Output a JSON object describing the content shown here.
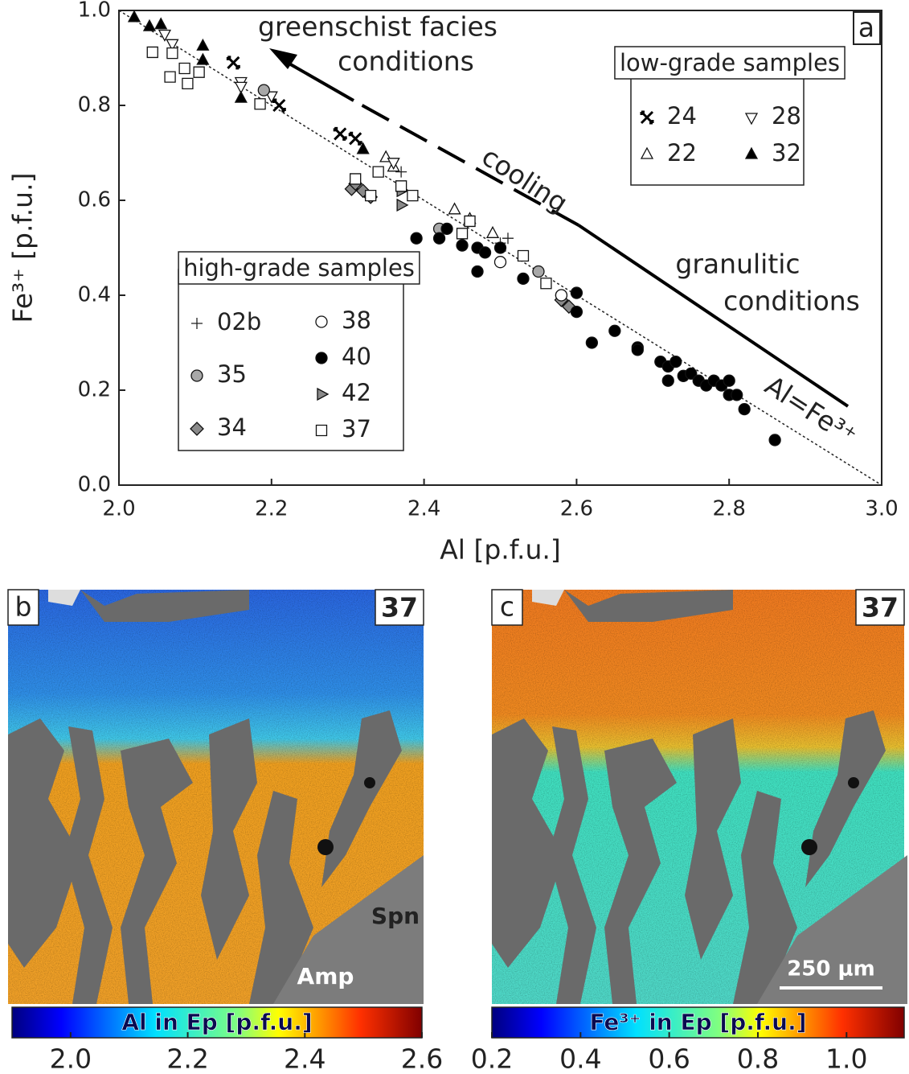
{
  "chart_data": [
    {
      "type": "scatter",
      "panel": "a",
      "xlabel": "Al [p.f.u.]",
      "ylabel": "Fe³⁺ [p.f.u.]",
      "xlim": [
        2.0,
        3.0
      ],
      "ylim": [
        0.0,
        1.0
      ],
      "xticks": [
        {
          "value": 2.0,
          "label": "2.0"
        },
        2.2,
        2.4,
        2.6,
        2.8,
        {
          "value": 3.0,
          "label": "3.0"
        }
      ],
      "yticks": [
        {
          "value": 0.0,
          "label": "0.0"
        },
        0.2,
        0.4,
        0.6,
        0.8,
        {
          "value": 1.0,
          "label": "1.0"
        }
      ],
      "annotations": {
        "greenschist": "greenschist facies",
        "greenschist2": "conditions",
        "cooling": "cooling",
        "granulitic": "granulitic",
        "granulitic2": "conditions",
        "line": "Al=Fe³⁺"
      },
      "legends": [
        {
          "title": "low-grade samples",
          "series": [
            {
              "name": "24",
              "marker": "x-star",
              "color": "#000",
              "x": [
                2.15,
                2.21,
                2.29,
                2.31
              ],
              "y": [
                0.89,
                0.8,
                0.74,
                0.73
              ]
            },
            {
              "name": "22",
              "marker": "triangle-up",
              "color": "#fff",
              "x": [
                2.35,
                2.36,
                2.44,
                2.46,
                2.49
              ],
              "y": [
                0.69,
                0.67,
                0.58,
                0.56,
                0.53
              ]
            },
            {
              "name": "28",
              "marker": "triangle-down",
              "color": "#fff",
              "x": [
                2.06,
                2.07,
                2.16,
                2.16,
                2.2,
                2.36
              ],
              "y": [
                0.95,
                0.93,
                0.85,
                0.84,
                0.82,
                0.68
              ]
            },
            {
              "name": "32",
              "marker": "triangle-up",
              "color": "#000",
              "x": [
                2.02,
                2.04,
                2.055,
                2.11,
                2.11,
                2.16,
                2.32
              ],
              "y": [
                0.985,
                0.966,
                0.97,
                0.925,
                0.895,
                0.815,
                0.707
              ]
            }
          ]
        },
        {
          "title": "high-grade samples",
          "series": [
            {
              "name": "02b",
              "marker": "plus",
              "color": "#222",
              "x": [
                2.37,
                2.51,
                2.5
              ],
              "y": [
                0.66,
                0.52,
                0.51
              ]
            },
            {
              "name": "35",
              "marker": "circle",
              "color": "#a8a8a8",
              "x": [
                2.19,
                2.42,
                2.55,
                2.58
              ],
              "y": [
                0.832,
                0.54,
                0.45,
                0.4
              ]
            },
            {
              "name": "34",
              "marker": "diamond",
              "color": "#8a8a8a",
              "x": [
                2.305,
                2.31,
                2.32,
                2.33,
                2.59,
                2.58
              ],
              "y": [
                0.624,
                0.635,
                0.62,
                0.607,
                0.376,
                0.39
              ]
            },
            {
              "name": "38",
              "marker": "circle",
              "color": "#fff",
              "x": [
                2.5,
                2.58
              ],
              "y": [
                0.47,
                0.4
              ]
            },
            {
              "name": "40",
              "marker": "circle",
              "color": "#000",
              "x": [
                2.39,
                2.42,
                2.43,
                2.45,
                2.47,
                2.48,
                2.47,
                2.5,
                2.53,
                2.6,
                2.6,
                2.62,
                2.65,
                2.68,
                2.68,
                2.71,
                2.72,
                2.72,
                2.73,
                2.74,
                2.75,
                2.76,
                2.77,
                2.78,
                2.79,
                2.8,
                2.8,
                2.81,
                2.82,
                2.86
              ],
              "y": [
                0.52,
                0.52,
                0.54,
                0.505,
                0.5,
                0.49,
                0.45,
                0.5,
                0.435,
                0.405,
                0.365,
                0.3,
                0.325,
                0.29,
                0.285,
                0.26,
                0.25,
                0.22,
                0.26,
                0.23,
                0.235,
                0.22,
                0.21,
                0.22,
                0.21,
                0.22,
                0.19,
                0.19,
                0.16,
                0.095
              ]
            },
            {
              "name": "42",
              "marker": "triangle-right",
              "color": "#8a8a8a",
              "x": [
                2.37,
                2.37
              ],
              "y": [
                0.59,
                0.62
              ]
            },
            {
              "name": "37",
              "marker": "square",
              "color": "#fff",
              "x": [
                2.044,
                2.07,
                2.086,
                2.067,
                2.09,
                2.105,
                2.185,
                2.31,
                2.33,
                2.34,
                2.37,
                2.385,
                2.46,
                2.45,
                2.53,
                2.56
              ],
              "y": [
                0.912,
                0.91,
                0.878,
                0.86,
                0.846,
                0.87,
                0.803,
                0.645,
                0.61,
                0.66,
                0.63,
                0.61,
                0.556,
                0.53,
                0.483,
                0.425
              ]
            }
          ]
        }
      ]
    },
    {
      "type": "map",
      "panel": "b",
      "sample": "37",
      "labels": [
        "Spn",
        "Amp"
      ],
      "colorbar": {
        "label": "Al in Ep [p.f.u.]",
        "lim": [
          1.9,
          2.6
        ],
        "ticks": [
          {
            "value": 2.0,
            "label": "2.0"
          },
          2.2,
          2.4,
          2.6
        ]
      }
    },
    {
      "type": "map",
      "panel": "c",
      "sample": "37",
      "labels": [
        "250 μm"
      ],
      "colorbar": {
        "label": "Fe³⁺ in Ep [p.f.u.]",
        "lim": [
          0.2,
          1.13
        ],
        "ticks": [
          0.2,
          0.4,
          0.6,
          0.8,
          {
            "value": 1.0,
            "label": "1.0"
          }
        ]
      }
    }
  ]
}
